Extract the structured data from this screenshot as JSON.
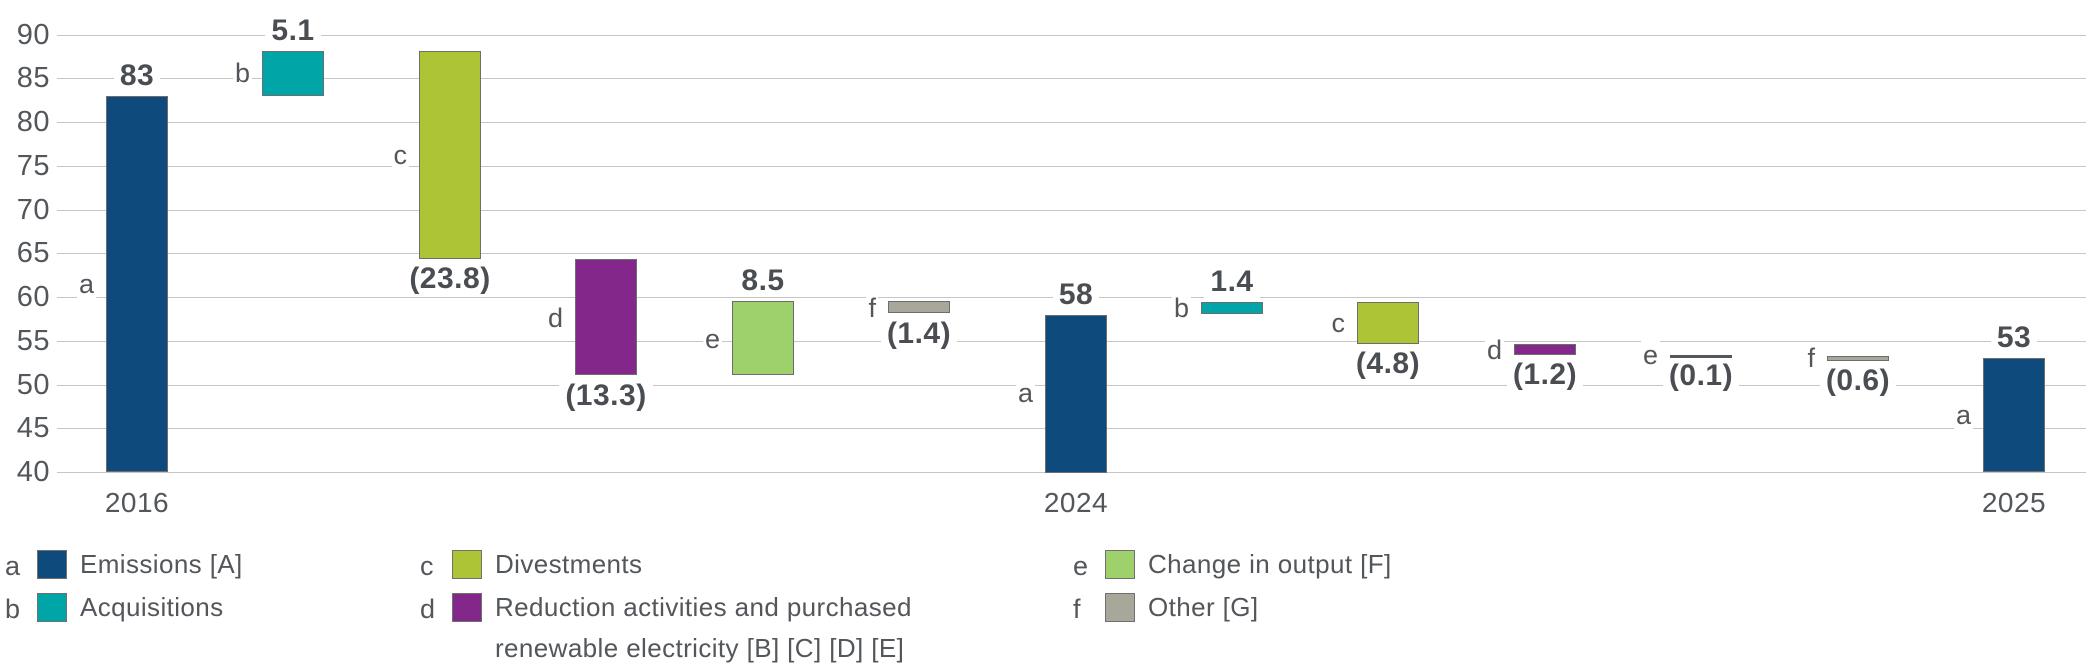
{
  "chart_data": {
    "type": "bar",
    "subtype": "waterfall",
    "title": "",
    "xlabel": "",
    "ylabel": "",
    "ylim": [
      40,
      90
    ],
    "y_ticks": [
      90,
      85,
      80,
      75,
      70,
      65,
      60,
      55,
      50,
      45,
      40
    ],
    "grid": "horizontal",
    "bars": [
      {
        "letter": "a",
        "series": "Emissions [A]",
        "value_label": "83",
        "start": 40,
        "end": 83,
        "label_pos": "above"
      },
      {
        "letter": "b",
        "series": "Acquisitions",
        "value_label": "5.1",
        "start": 83,
        "end": 88.1,
        "label_pos": "above"
      },
      {
        "letter": "c",
        "series": "Divestments",
        "value_label": "(23.8)",
        "start": 88.1,
        "end": 64.3,
        "label_pos": "below"
      },
      {
        "letter": "d",
        "series": "Reduction activities and purchased renewable electricity [B] [C] [D] [E]",
        "value_label": "(13.3)",
        "start": 64.3,
        "end": 51,
        "label_pos": "below"
      },
      {
        "letter": "e",
        "series": "Change in output [F]",
        "value_label": "8.5",
        "start": 51,
        "end": 59.5,
        "label_pos": "above"
      },
      {
        "letter": "f",
        "series": "Other [G]",
        "value_label": "(1.4)",
        "start": 59.5,
        "end": 58.1,
        "label_pos": "below"
      },
      {
        "letter": "a",
        "series": "Emissions [A]",
        "value_label": "58",
        "start": 40,
        "end": 58,
        "label_pos": "above"
      },
      {
        "letter": "b",
        "series": "Acquisitions",
        "value_label": "1.4",
        "start": 58,
        "end": 59.4,
        "label_pos": "above"
      },
      {
        "letter": "c",
        "series": "Divestments",
        "value_label": "(4.8)",
        "start": 59.4,
        "end": 54.6,
        "label_pos": "below"
      },
      {
        "letter": "d",
        "series": "Reduction activities and purchased renewable electricity [B] [C] [D] [E]",
        "value_label": "(1.2)",
        "start": 54.6,
        "end": 53.4,
        "label_pos": "below"
      },
      {
        "letter": "e",
        "series": "Change in output [F]",
        "value_label": "(0.1)",
        "start": 53.4,
        "end": 53.3,
        "label_pos": "below"
      },
      {
        "letter": "f",
        "series": "Other [G]",
        "value_label": "(0.6)",
        "start": 53.3,
        "end": 52.7,
        "label_pos": "below"
      },
      {
        "letter": "a",
        "series": "Emissions [A]",
        "value_label": "53",
        "start": 40,
        "end": 53,
        "label_pos": "above"
      }
    ],
    "x_axis_labels": [
      {
        "label": "2016",
        "bar_index": 0
      },
      {
        "label": "2024",
        "bar_index": 6
      },
      {
        "label": "2025",
        "bar_index": 12
      }
    ],
    "series_colors": {
      "a": "#0e4a7c",
      "b": "#00a5a7",
      "c": "#aec437",
      "d": "#84278a",
      "e": "#9ed06b",
      "f": "#a9a79a"
    },
    "legend": [
      {
        "letter": "a",
        "label": "Emissions [A]",
        "col": 0,
        "row": 0
      },
      {
        "letter": "b",
        "label": "Acquisitions",
        "col": 0,
        "row": 1
      },
      {
        "letter": "c",
        "label": "Divestments",
        "col": 1,
        "row": 0
      },
      {
        "letter": "d",
        "label": "Reduction activities and purchased\nrenewable electricity [B] [C] [D] [E]",
        "col": 1,
        "row": 1
      },
      {
        "letter": "e",
        "label": "Change in output [F]",
        "col": 2,
        "row": 0
      },
      {
        "letter": "f",
        "label": "Other [G]",
        "col": 2,
        "row": 1
      }
    ],
    "style_colors": {
      "gridline": "#c6c6c6",
      "axis_text": "#53565a",
      "value_text": "#4a4d51",
      "bar_border": "#6d6d6d",
      "collapsed_bar_line": "#53565a"
    }
  }
}
